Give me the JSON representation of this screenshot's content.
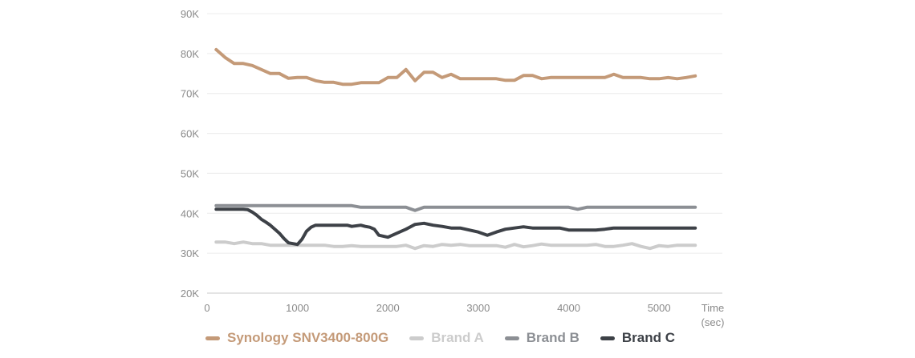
{
  "chart_data": {
    "type": "line",
    "title": "",
    "xlabel": "Time",
    "xlabel_unit": "(sec)",
    "ylabel": "",
    "xlim": [
      0,
      5700
    ],
    "ylim": [
      20000,
      90000
    ],
    "x_ticks": [
      0,
      1000,
      2000,
      3000,
      4000,
      5000
    ],
    "y_ticks": [
      20000,
      30000,
      40000,
      50000,
      60000,
      70000,
      80000,
      90000
    ],
    "y_tick_labels": [
      "20K",
      "30K",
      "40K",
      "50K",
      "60K",
      "70K",
      "80K",
      "90K"
    ],
    "grid": "horizontal",
    "legend_position": "bottom",
    "series": [
      {
        "name": "Synology SNV3400-800G",
        "color": "#c49a78",
        "x": [
          100,
          200,
          300,
          400,
          500,
          600,
          700,
          800,
          900,
          1000,
          1100,
          1200,
          1300,
          1400,
          1500,
          1600,
          1700,
          1800,
          1900,
          2000,
          2100,
          2200,
          2300,
          2400,
          2500,
          2600,
          2700,
          2800,
          2900,
          3000,
          3100,
          3200,
          3300,
          3400,
          3500,
          3600,
          3700,
          3800,
          3900,
          4000,
          4100,
          4200,
          4300,
          4400,
          4500,
          4600,
          4700,
          4800,
          4900,
          5000,
          5100,
          5200,
          5300,
          5400
        ],
        "y": [
          81000,
          79000,
          77500,
          77500,
          77000,
          76000,
          75000,
          75000,
          73800,
          74000,
          74000,
          73200,
          72800,
          72800,
          72300,
          72300,
          72700,
          72700,
          72700,
          74000,
          74000,
          76000,
          73200,
          75300,
          75300,
          74000,
          74800,
          73700,
          73700,
          73700,
          73700,
          73700,
          73300,
          73300,
          74500,
          74500,
          73700,
          74000,
          74000,
          74000,
          74000,
          74000,
          74000,
          74000,
          74800,
          74000,
          74000,
          74000,
          73700,
          73700,
          74000,
          73700,
          74000,
          74400
        ]
      },
      {
        "name": "Brand A",
        "color": "#cccccc",
        "x": [
          100,
          200,
          300,
          400,
          500,
          600,
          700,
          800,
          900,
          1000,
          1100,
          1200,
          1300,
          1400,
          1500,
          1600,
          1700,
          1800,
          1900,
          2000,
          2100,
          2200,
          2300,
          2400,
          2500,
          2600,
          2700,
          2800,
          2900,
          3000,
          3100,
          3200,
          3300,
          3400,
          3500,
          3600,
          3700,
          3800,
          3900,
          4000,
          4100,
          4200,
          4300,
          4400,
          4500,
          4600,
          4700,
          4800,
          4900,
          5000,
          5100,
          5200,
          5300,
          5400
        ],
        "y": [
          32800,
          32800,
          32400,
          32800,
          32400,
          32400,
          32000,
          32000,
          32000,
          32000,
          32000,
          32000,
          32000,
          31700,
          31700,
          31900,
          31700,
          31700,
          31700,
          31700,
          31700,
          32000,
          31200,
          31900,
          31700,
          32200,
          32000,
          32200,
          31900,
          31900,
          31900,
          31900,
          31500,
          32200,
          31600,
          31900,
          32300,
          32000,
          32000,
          32000,
          32000,
          32000,
          32200,
          31700,
          31700,
          32000,
          32400,
          31700,
          31200,
          31900,
          31700,
          32000,
          32000,
          32000
        ]
      },
      {
        "name": "Brand B",
        "color": "#8c8f94",
        "x": [
          100,
          200,
          300,
          400,
          500,
          600,
          700,
          800,
          900,
          1000,
          1100,
          1200,
          1300,
          1400,
          1500,
          1600,
          1700,
          1800,
          1900,
          2000,
          2100,
          2200,
          2300,
          2400,
          2500,
          2600,
          2700,
          2800,
          2900,
          3000,
          3100,
          3200,
          3300,
          3400,
          3500,
          3600,
          3700,
          3800,
          3900,
          4000,
          4100,
          4200,
          4300,
          4400,
          4500,
          4600,
          4700,
          4800,
          4900,
          5000,
          5100,
          5200,
          5300,
          5400
        ],
        "y": [
          41900,
          41900,
          41900,
          41900,
          41900,
          41900,
          41900,
          41900,
          41900,
          41900,
          41900,
          41900,
          41900,
          41900,
          41900,
          41900,
          41500,
          41500,
          41500,
          41500,
          41500,
          41500,
          40700,
          41500,
          41500,
          41500,
          41500,
          41500,
          41500,
          41500,
          41500,
          41500,
          41500,
          41500,
          41500,
          41500,
          41500,
          41500,
          41500,
          41500,
          41000,
          41500,
          41500,
          41500,
          41500,
          41500,
          41500,
          41500,
          41500,
          41500,
          41500,
          41500,
          41500,
          41500
        ]
      },
      {
        "name": "Brand C",
        "color": "#3d4147",
        "x": [
          100,
          200,
          300,
          400,
          450,
          500,
          550,
          600,
          650,
          700,
          750,
          800,
          850,
          900,
          950,
          1000,
          1050,
          1100,
          1150,
          1200,
          1300,
          1400,
          1500,
          1550,
          1600,
          1700,
          1750,
          1800,
          1850,
          1900,
          2000,
          2100,
          2200,
          2300,
          2400,
          2500,
          2600,
          2700,
          2800,
          2900,
          3000,
          3100,
          3200,
          3300,
          3400,
          3500,
          3600,
          3700,
          3800,
          3900,
          4000,
          4100,
          4200,
          4300,
          4400,
          4500,
          4600,
          4700,
          4800,
          4900,
          5000,
          5100,
          5200,
          5300,
          5400
        ],
        "y": [
          41000,
          41000,
          41000,
          41000,
          40900,
          40300,
          39500,
          38500,
          37800,
          37000,
          36000,
          35000,
          33700,
          32600,
          32400,
          32200,
          33500,
          35500,
          36500,
          37000,
          37000,
          37000,
          37000,
          37000,
          36700,
          37000,
          36700,
          36500,
          36000,
          34500,
          34000,
          35000,
          36000,
          37200,
          37500,
          37000,
          36700,
          36300,
          36300,
          35800,
          35300,
          34500,
          35300,
          36000,
          36300,
          36600,
          36300,
          36300,
          36300,
          36300,
          35800,
          35800,
          35800,
          35800,
          36000,
          36300,
          36300,
          36300,
          36300,
          36300,
          36300,
          36300,
          36300,
          36300,
          36300
        ]
      }
    ]
  }
}
